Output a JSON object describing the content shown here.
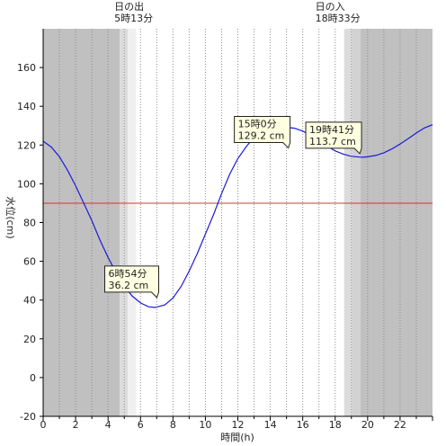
{
  "chart_data": {
    "type": "line",
    "xlabel": "時間(h)",
    "ylabel": "水位(cm)",
    "xlim": [
      0,
      24
    ],
    "ylim": [
      -20,
      180
    ],
    "x_ticks": [
      0,
      2,
      4,
      6,
      8,
      10,
      12,
      14,
      16,
      18,
      20,
      22
    ],
    "y_ticks": [
      -20,
      0,
      20,
      40,
      60,
      80,
      100,
      120,
      140,
      160
    ],
    "threshold": {
      "value": 90,
      "color": "#e03030"
    },
    "sunrise": {
      "label": "日の出",
      "time_label": "5時13分",
      "hour": 5.22
    },
    "sunset": {
      "label": "日の入",
      "time_label": "18時33分",
      "hour": 18.55
    },
    "series": [
      {
        "color": "#1a1adb",
        "points": [
          [
            0,
            122
          ],
          [
            0.5,
            119
          ],
          [
            1,
            114
          ],
          [
            1.5,
            107
          ],
          [
            2,
            99
          ],
          [
            2.5,
            90
          ],
          [
            3,
            81
          ],
          [
            3.5,
            71
          ],
          [
            4,
            62
          ],
          [
            4.5,
            54
          ],
          [
            5,
            47
          ],
          [
            5.5,
            42
          ],
          [
            6,
            38.5
          ],
          [
            6.5,
            36.5
          ],
          [
            6.9,
            36.2
          ],
          [
            7.5,
            37.5
          ],
          [
            8,
            41
          ],
          [
            8.5,
            47
          ],
          [
            9,
            55
          ],
          [
            9.5,
            64
          ],
          [
            10,
            74
          ],
          [
            10.5,
            84
          ],
          [
            11,
            95
          ],
          [
            11.5,
            105
          ],
          [
            12,
            113
          ],
          [
            12.5,
            119
          ],
          [
            13,
            124
          ],
          [
            13.5,
            127
          ],
          [
            14,
            128.6
          ],
          [
            14.5,
            129.1
          ],
          [
            15,
            129.2
          ],
          [
            15.5,
            128.7
          ],
          [
            16,
            127.2
          ],
          [
            16.5,
            125
          ],
          [
            17,
            122.3
          ],
          [
            17.5,
            119.5
          ],
          [
            18,
            117
          ],
          [
            18.5,
            115.3
          ],
          [
            19,
            114.2
          ],
          [
            19.5,
            113.8
          ],
          [
            19.7,
            113.7
          ],
          [
            20,
            113.9
          ],
          [
            20.5,
            114.6
          ],
          [
            21,
            116
          ],
          [
            21.5,
            118
          ],
          [
            22,
            120.5
          ],
          [
            22.5,
            123.3
          ],
          [
            23,
            126.2
          ],
          [
            23.5,
            128.8
          ],
          [
            24,
            130.5
          ]
        ]
      }
    ],
    "annotations": [
      {
        "label": "6時54分",
        "value": "36.2 cm",
        "x": 6.9,
        "y": 36.2
      },
      {
        "label": "15時0分",
        "value": "129.2 cm",
        "x": 15.0,
        "y": 129.2
      },
      {
        "label": "19時41分",
        "value": "113.7 cm",
        "x": 19.68,
        "y": 113.7
      }
    ]
  }
}
